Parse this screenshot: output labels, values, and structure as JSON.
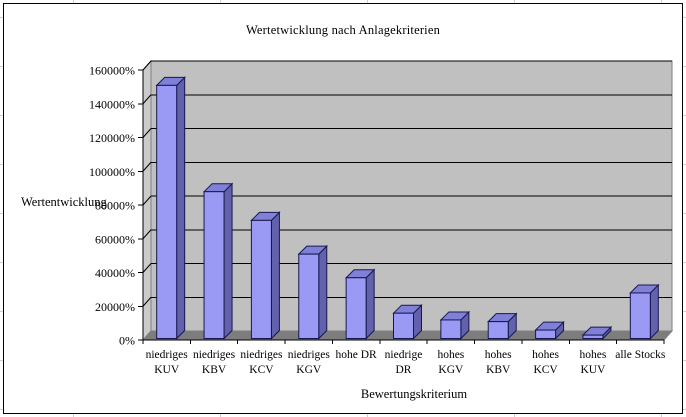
{
  "chart_title": "Wertetwicklung nach Anlagekriterien",
  "chart_data": {
    "type": "bar",
    "style": "3d-column",
    "title": "Wertetwicklung nach Anlagekriterien",
    "xlabel": "Bewertungskriterium",
    "ylabel": "Wertentwicklung",
    "legend": "none",
    "grid": true,
    "ylim": [
      0,
      160000
    ],
    "categories": [
      "niedriges KUV",
      "niedriges KBV",
      "niedriges KCV",
      "niedriges KGV",
      "hohe DR",
      "niedrige DR",
      "hohes KGV",
      "hohes KBV",
      "hohes KCV",
      "hohes KUV",
      "alle Stocks"
    ],
    "category_label_lines": [
      [
        "niedriges",
        "KUV"
      ],
      [
        "niedriges",
        "KBV"
      ],
      [
        "niedriges",
        "KCV"
      ],
      [
        "niedriges",
        "KGV"
      ],
      [
        "hohe DR"
      ],
      [
        "niedrige",
        "DR"
      ],
      [
        "hohes",
        "KGV"
      ],
      [
        "hohes",
        "KBV"
      ],
      [
        "hohes",
        "KCV"
      ],
      [
        "hohes",
        "KUV"
      ],
      [
        "alle Stocks"
      ]
    ],
    "values": [
      150000,
      87000,
      70000,
      50000,
      36000,
      15000,
      11000,
      10000,
      5000,
      2000,
      27000
    ],
    "value_unit": "%",
    "y_ticks": [
      {
        "value": 0,
        "label": "0%"
      },
      {
        "value": 20000,
        "label": "20000%"
      },
      {
        "value": 40000,
        "label": "40000%"
      },
      {
        "value": 60000,
        "label": "60000%"
      },
      {
        "value": 80000,
        "label": "80000%"
      },
      {
        "value": 100000,
        "label": "100000%"
      },
      {
        "value": 120000,
        "label": "120000%"
      },
      {
        "value": 140000,
        "label": "140000%"
      },
      {
        "value": 160000,
        "label": "160000%"
      }
    ],
    "colors": {
      "bar_front": "#9a9af5",
      "bar_top": "#8080d8",
      "bar_side": "#6262ac",
      "bar_outline": "#17174f",
      "wall_back": "#c0c0c0",
      "wall_side": "#cbcbcb",
      "floor": "#7d7d7d",
      "wall_edge": "#7f7f7f",
      "gridline": "#000000",
      "axis": "#000000",
      "text": "#000000",
      "frame_border": "#000000",
      "background": "#ffffff"
    }
  }
}
